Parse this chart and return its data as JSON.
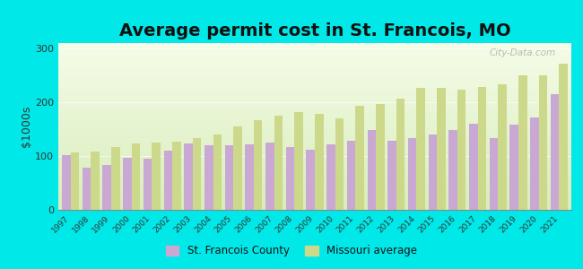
{
  "title": "Average permit cost in St. Francois, MO",
  "ylabel": "$1000s",
  "years": [
    1997,
    1998,
    1999,
    2000,
    2001,
    2002,
    2003,
    2004,
    2005,
    2006,
    2007,
    2008,
    2009,
    2010,
    2011,
    2012,
    2013,
    2014,
    2015,
    2016,
    2017,
    2018,
    2019,
    2020,
    2021
  ],
  "county_values": [
    102,
    78,
    83,
    97,
    95,
    110,
    123,
    120,
    120,
    122,
    125,
    117,
    112,
    122,
    128,
    148,
    128,
    133,
    140,
    148,
    160,
    133,
    158,
    172,
    215
  ],
  "state_values": [
    106,
    108,
    117,
    123,
    125,
    127,
    133,
    140,
    155,
    167,
    175,
    182,
    178,
    170,
    193,
    196,
    207,
    226,
    226,
    224,
    228,
    233,
    250,
    250,
    272
  ],
  "county_color": "#c9a8d4",
  "state_color": "#ccd98a",
  "background_color": "#00e8e8",
  "ylim": [
    0,
    310
  ],
  "yticks": [
    0,
    100,
    200,
    300
  ],
  "title_fontsize": 14,
  "legend_county": "St. Francois County",
  "legend_state": "Missouri average",
  "watermark": "City-Data.com"
}
